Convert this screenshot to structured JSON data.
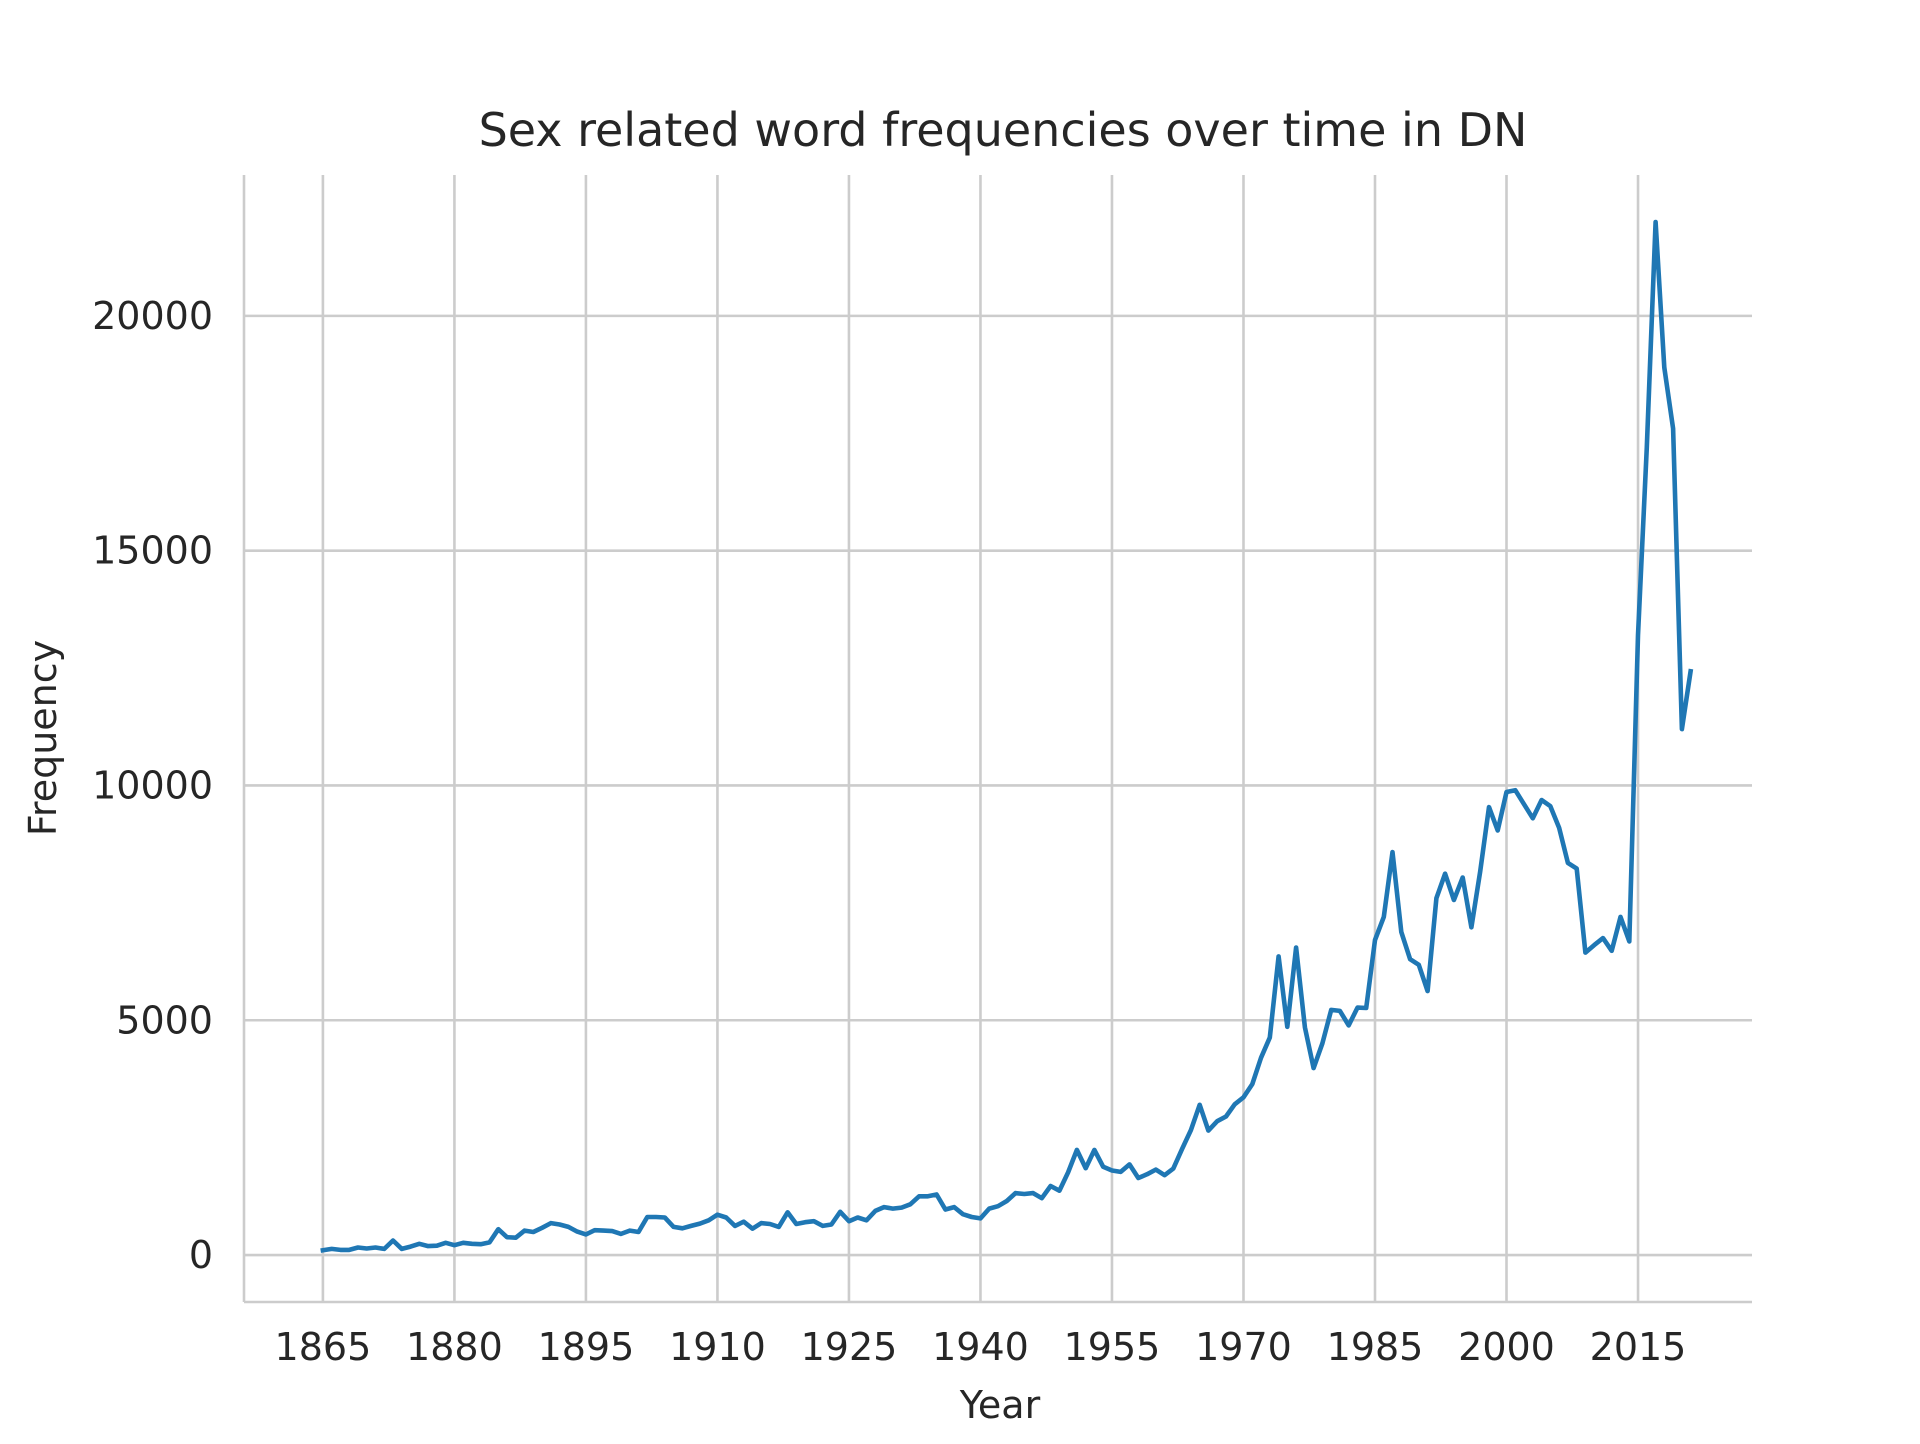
{
  "chart_data": {
    "type": "line",
    "title": "Sex related word frequencies over time in DN",
    "xlabel": "Year",
    "ylabel": "Frequency",
    "xlim": [
      1856,
      2028
    ],
    "ylim": [
      -1000,
      23000
    ],
    "xticks": [
      1865,
      1880,
      1895,
      1910,
      1925,
      1940,
      1955,
      1970,
      1985,
      2000,
      2015
    ],
    "yticks": [
      0,
      5000,
      10000,
      15000,
      20000
    ],
    "grid": true,
    "legend": "none",
    "series": [
      {
        "color": "#1f77b4",
        "x": [
          1865,
          1866,
          1867,
          1868,
          1869,
          1870,
          1871,
          1872,
          1873,
          1874,
          1875,
          1876,
          1877,
          1878,
          1879,
          1880,
          1881,
          1882,
          1883,
          1884,
          1885,
          1886,
          1887,
          1888,
          1889,
          1890,
          1891,
          1892,
          1893,
          1894,
          1895,
          1896,
          1897,
          1898,
          1899,
          1900,
          1901,
          1902,
          1903,
          1904,
          1905,
          1906,
          1907,
          1908,
          1909,
          1910,
          1911,
          1912,
          1913,
          1914,
          1915,
          1916,
          1917,
          1918,
          1919,
          1920,
          1921,
          1922,
          1923,
          1924,
          1925,
          1926,
          1927,
          1928,
          1929,
          1930,
          1931,
          1932,
          1933,
          1934,
          1935,
          1936,
          1937,
          1938,
          1939,
          1940,
          1941,
          1942,
          1943,
          1944,
          1945,
          1946,
          1947,
          1948,
          1949,
          1950,
          1951,
          1952,
          1953,
          1954,
          1955,
          1956,
          1957,
          1958,
          1959,
          1960,
          1961,
          1962,
          1963,
          1964,
          1965,
          1966,
          1967,
          1968,
          1969,
          1970,
          1971,
          1972,
          1973,
          1974,
          1975,
          1976,
          1977,
          1978,
          1979,
          1980,
          1981,
          1982,
          1983,
          1984,
          1985,
          1986,
          1987,
          1988,
          1989,
          1990,
          1991,
          1992,
          1993,
          1994,
          1995,
          1996,
          1997,
          1998,
          1999,
          2000,
          2001,
          2002,
          2003,
          2004,
          2005,
          2006,
          2007,
          2008,
          2009,
          2010,
          2011,
          2012,
          2013,
          2014,
          2015,
          2016,
          2017,
          2018,
          2019,
          2020,
          2021
        ],
        "y": [
          100,
          130,
          110,
          110,
          160,
          140,
          160,
          130,
          310,
          130,
          180,
          240,
          190,
          200,
          260,
          210,
          260,
          240,
          230,
          270,
          550,
          380,
          370,
          520,
          490,
          580,
          680,
          650,
          600,
          500,
          440,
          530,
          520,
          510,
          450,
          520,
          490,
          810,
          810,
          800,
          600,
          570,
          620,
          670,
          740,
          860,
          800,
          620,
          710,
          560,
          680,
          660,
          600,
          910,
          660,
          700,
          720,
          620,
          650,
          920,
          720,
          800,
          740,
          940,
          1020,
          990,
          1010,
          1080,
          1250,
          1250,
          1290,
          970,
          1020,
          870,
          810,
          780,
          990,
          1040,
          1150,
          1320,
          1300,
          1320,
          1210,
          1470,
          1370,
          1760,
          2240,
          1850,
          2240,
          1880,
          1800,
          1770,
          1930,
          1640,
          1720,
          1820,
          1700,
          1840,
          2260,
          2660,
          3200,
          2650,
          2850,
          2950,
          3210,
          3360,
          3640,
          4200,
          4630,
          6360,
          4860,
          6550,
          4850,
          3980,
          4510,
          5220,
          5200,
          4890,
          5270,
          5260,
          6710,
          7200,
          8580,
          6880,
          6300,
          6180,
          5620,
          7600,
          8120,
          7560,
          8040,
          6980,
          8170,
          9540,
          9040,
          9860,
          9900,
          9600,
          9300,
          9690,
          9560,
          9100,
          8350,
          8230,
          6440,
          6600,
          6750,
          6480,
          7200,
          6680,
          13200,
          17200,
          22000,
          18900,
          17600,
          11200,
          12430
        ]
      }
    ]
  }
}
